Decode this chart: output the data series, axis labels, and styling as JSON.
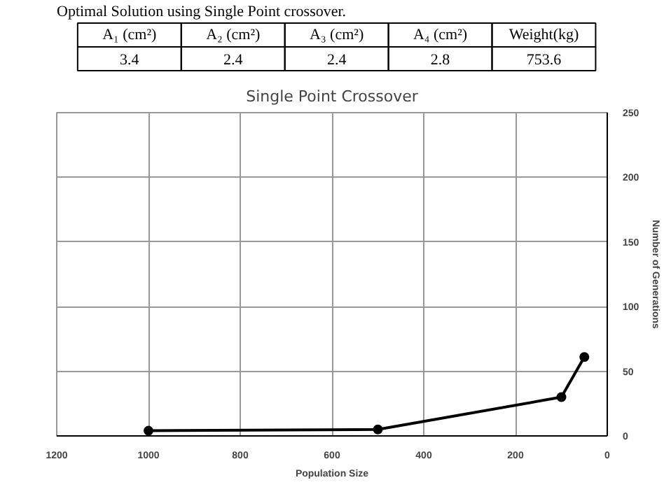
{
  "chart_data": {
    "type": "line",
    "title": "Single Point Crossover",
    "xlabel": "Population Size",
    "ylabel": "Number of Generations",
    "annotations": [
      "Optimal Solution using Single Point crossover.",
      "A₁ (cm²)",
      "A₂ (cm²)",
      "A₃ (cm²)",
      "A₄ (cm²)",
      "Weight(kg)",
      "3.4",
      "2.4",
      "2.4",
      "2.8",
      "753.6"
    ],
    "x": [
      1000,
      500,
      100,
      50
    ],
    "series": [
      {
        "color": "#000000",
        "values": [
          4,
          5,
          30,
          61
        ]
      }
    ],
    "xlim": [
      1200,
      0
    ],
    "xticks": [
      1200,
      1000,
      800,
      600,
      400,
      200,
      0
    ],
    "ylim": [
      0,
      250
    ],
    "yticks": [
      0,
      50,
      100,
      150,
      200,
      250
    ],
    "grid": true,
    "marker": "circle",
    "line_style": "solid"
  }
}
